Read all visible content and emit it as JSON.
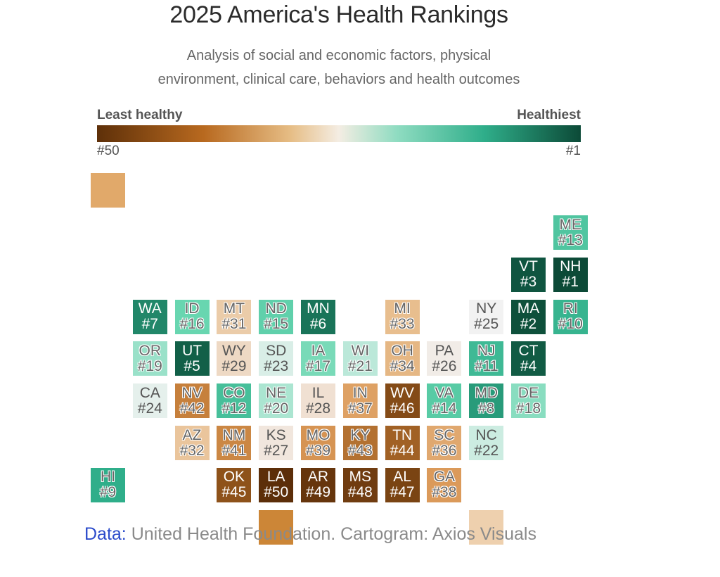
{
  "chart_data": {
    "type": "tile-cartogram",
    "title": "2025 America's Health Rankings",
    "subtitle_lines": [
      "Analysis of social and economic factors, physical",
      "environment, clinical care, behaviors and health outcomes"
    ],
    "legend": {
      "low_label": "Least healthy",
      "high_label": "Healthiest",
      "low_rank": "#50",
      "high_rank": "#1",
      "scale": [
        "#5e3009",
        "#b8691f",
        "#e6bd85",
        "#f4ede3",
        "#8fdcc1",
        "#2fae8a",
        "#0c4a37"
      ]
    },
    "states": [
      {
        "abbr": "ME",
        "rank": 13,
        "rank_label": "#13",
        "row": 0,
        "col": 11
      },
      {
        "abbr": "VT",
        "rank": 3,
        "rank_label": "#3",
        "row": 1,
        "col": 10
      },
      {
        "abbr": "NH",
        "rank": 1,
        "rank_label": "#1",
        "row": 1,
        "col": 11
      },
      {
        "abbr": "WA",
        "rank": 7,
        "rank_label": "#7",
        "row": 2,
        "col": 1
      },
      {
        "abbr": "ID",
        "rank": 16,
        "rank_label": "#16",
        "row": 2,
        "col": 2
      },
      {
        "abbr": "MT",
        "rank": 31,
        "rank_label": "#31",
        "row": 2,
        "col": 3
      },
      {
        "abbr": "ND",
        "rank": 15,
        "rank_label": "#15",
        "row": 2,
        "col": 4
      },
      {
        "abbr": "MN",
        "rank": 6,
        "rank_label": "#6",
        "row": 2,
        "col": 5
      },
      {
        "abbr": "MI",
        "rank": 33,
        "rank_label": "#33",
        "row": 2,
        "col": 7
      },
      {
        "abbr": "NY",
        "rank": 25,
        "rank_label": "#25",
        "row": 2,
        "col": 9
      },
      {
        "abbr": "MA",
        "rank": 2,
        "rank_label": "#2",
        "row": 2,
        "col": 10
      },
      {
        "abbr": "RI",
        "rank": 10,
        "rank_label": "#10",
        "row": 2,
        "col": 11
      },
      {
        "abbr": "OR",
        "rank": 19,
        "rank_label": "#19",
        "row": 3,
        "col": 1
      },
      {
        "abbr": "UT",
        "rank": 5,
        "rank_label": "#5",
        "row": 3,
        "col": 2
      },
      {
        "abbr": "WY",
        "rank": 29,
        "rank_label": "#29",
        "row": 3,
        "col": 3
      },
      {
        "abbr": "SD",
        "rank": 23,
        "rank_label": "#23",
        "row": 3,
        "col": 4
      },
      {
        "abbr": "IA",
        "rank": 17,
        "rank_label": "#17",
        "row": 3,
        "col": 5
      },
      {
        "abbr": "WI",
        "rank": 21,
        "rank_label": "#21",
        "row": 3,
        "col": 6
      },
      {
        "abbr": "OH",
        "rank": 34,
        "rank_label": "#34",
        "row": 3,
        "col": 7
      },
      {
        "abbr": "PA",
        "rank": 26,
        "rank_label": "#26",
        "row": 3,
        "col": 8
      },
      {
        "abbr": "NJ",
        "rank": 11,
        "rank_label": "#11",
        "row": 3,
        "col": 9
      },
      {
        "abbr": "CT",
        "rank": 4,
        "rank_label": "#4",
        "row": 3,
        "col": 10
      },
      {
        "abbr": "CA",
        "rank": 24,
        "rank_label": "#24",
        "row": 4,
        "col": 1
      },
      {
        "abbr": "NV",
        "rank": 42,
        "rank_label": "#42",
        "row": 4,
        "col": 2
      },
      {
        "abbr": "CO",
        "rank": 12,
        "rank_label": "#12",
        "row": 4,
        "col": 3
      },
      {
        "abbr": "NE",
        "rank": 20,
        "rank_label": "#20",
        "row": 4,
        "col": 4
      },
      {
        "abbr": "IL",
        "rank": 28,
        "rank_label": "#28",
        "row": 4,
        "col": 5
      },
      {
        "abbr": "IN",
        "rank": 37,
        "rank_label": "#37",
        "row": 4,
        "col": 6
      },
      {
        "abbr": "WV",
        "rank": 46,
        "rank_label": "#46",
        "row": 4,
        "col": 7
      },
      {
        "abbr": "VA",
        "rank": 14,
        "rank_label": "#14",
        "row": 4,
        "col": 8
      },
      {
        "abbr": "MD",
        "rank": 8,
        "rank_label": "#8",
        "row": 4,
        "col": 9
      },
      {
        "abbr": "DE",
        "rank": 18,
        "rank_label": "#18",
        "row": 4,
        "col": 10
      },
      {
        "abbr": "AZ",
        "rank": 32,
        "rank_label": "#32",
        "row": 5,
        "col": 2
      },
      {
        "abbr": "NM",
        "rank": 41,
        "rank_label": "#41",
        "row": 5,
        "col": 3
      },
      {
        "abbr": "KS",
        "rank": 27,
        "rank_label": "#27",
        "row": 5,
        "col": 4
      },
      {
        "abbr": "MO",
        "rank": 39,
        "rank_label": "#39",
        "row": 5,
        "col": 5
      },
      {
        "abbr": "KY",
        "rank": 43,
        "rank_label": "#43",
        "row": 5,
        "col": 6
      },
      {
        "abbr": "TN",
        "rank": 44,
        "rank_label": "#44",
        "row": 5,
        "col": 7
      },
      {
        "abbr": "SC",
        "rank": 36,
        "rank_label": "#36",
        "row": 5,
        "col": 8
      },
      {
        "abbr": "NC",
        "rank": 22,
        "rank_label": "#22",
        "row": 5,
        "col": 9
      },
      {
        "abbr": "HI",
        "rank": 9,
        "rank_label": "#9",
        "row": 6,
        "col": 0
      },
      {
        "abbr": "OK",
        "rank": 45,
        "rank_label": "#45",
        "row": 6,
        "col": 3
      },
      {
        "abbr": "LA",
        "rank": 50,
        "rank_label": "#50",
        "row": 6,
        "col": 4
      },
      {
        "abbr": "AR",
        "rank": 49,
        "rank_label": "#49",
        "row": 6,
        "col": 5
      },
      {
        "abbr": "MS",
        "rank": 48,
        "rank_label": "#48",
        "row": 6,
        "col": 6
      },
      {
        "abbr": "AL",
        "rank": 47,
        "rank_label": "#47",
        "row": 6,
        "col": 7
      },
      {
        "abbr": "GA",
        "rank": 38,
        "rank_label": "#38",
        "row": 6,
        "col": 8
      }
    ],
    "unlabeled_tiles": [
      {
        "row": -1,
        "col": 0,
        "color": "#e1a96a"
      },
      {
        "row": 7,
        "col": 4,
        "color": "#cc8637"
      },
      {
        "row": 7,
        "col": 9,
        "color": "#eed0ae"
      }
    ]
  },
  "footer": {
    "source_label": "Data:",
    "source_text": " United Health Foundation. Cartogram: Axios Visuals"
  }
}
